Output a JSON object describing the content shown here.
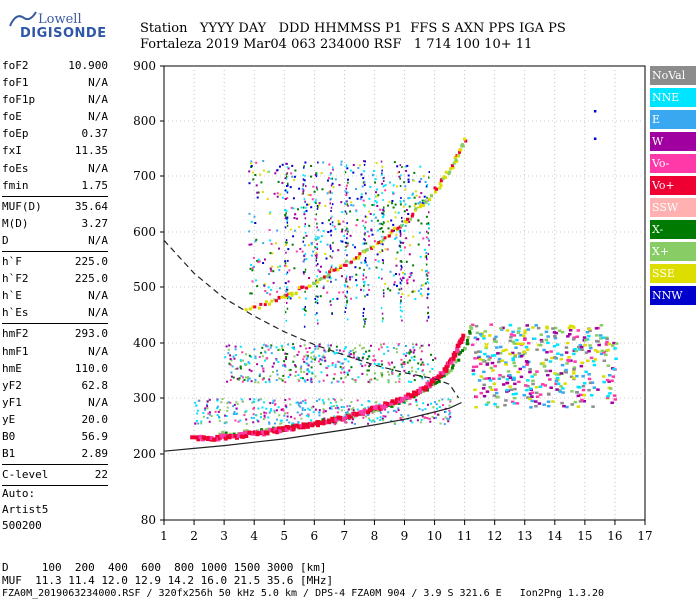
{
  "logo": {
    "line1": "Lowell",
    "line2": "DIGISONDE"
  },
  "header": {
    "row1": "Station   YYYY DAY   DDD HHMMSS P1  FFS S AXN PPS IGA PS",
    "row2": "Fortaleza 2019 Mar04 063 234000 RSF   1 714 100 10+ 11"
  },
  "params": [
    {
      "k": "foF2",
      "v": "10.900"
    },
    {
      "k": "foF1",
      "v": "N/A"
    },
    {
      "k": "foF1p",
      "v": "N/A"
    },
    {
      "k": "foE",
      "v": "N/A"
    },
    {
      "k": "foEp",
      "v": "0.37"
    },
    {
      "k": "fxI",
      "v": "11.35"
    },
    {
      "k": "foEs",
      "v": "N/A"
    },
    {
      "k": "fmin",
      "v": "1.75"
    },
    {
      "k": "sep"
    },
    {
      "k": "MUF(D)",
      "v": "35.64"
    },
    {
      "k": "M(D)",
      "v": "3.27"
    },
    {
      "k": "D",
      "v": "N/A"
    },
    {
      "k": "sep"
    },
    {
      "k": "h`F",
      "v": "225.0"
    },
    {
      "k": "h`F2",
      "v": "225.0"
    },
    {
      "k": "h`E",
      "v": "N/A"
    },
    {
      "k": "h`Es",
      "v": "N/A"
    },
    {
      "k": "sep"
    },
    {
      "k": "hmF2",
      "v": "293.0"
    },
    {
      "k": "hmF1",
      "v": "N/A"
    },
    {
      "k": "hmE",
      "v": "110.0"
    },
    {
      "k": "yF2",
      "v": "62.8"
    },
    {
      "k": "yF1",
      "v": "N/A"
    },
    {
      "k": "yE",
      "v": "20.0"
    },
    {
      "k": "B0",
      "v": "56.9"
    },
    {
      "k": "B1",
      "v": "2.89"
    },
    {
      "k": "sep"
    },
    {
      "k": "C-level",
      "v": "22"
    },
    {
      "k": "sep"
    }
  ],
  "auto": {
    "l1": "Auto:",
    "l2": "Artist5",
    "l3": "500200"
  },
  "legend": [
    {
      "label": "NoVal",
      "color": "#8c8c8c"
    },
    {
      "label": "NNE",
      "color": "#00e5ff"
    },
    {
      "label": "E",
      "color": "#3aa8f0"
    },
    {
      "label": "W",
      "color": "#a000a0"
    },
    {
      "label": "Vo-",
      "color": "#ff3aa8"
    },
    {
      "label": "Vo+",
      "color": "#ee0033"
    },
    {
      "label": "SSW",
      "color": "#ffb0b0"
    },
    {
      "label": "X-",
      "color": "#007a00"
    },
    {
      "label": "X+",
      "color": "#88cc66"
    },
    {
      "label": "SSE",
      "color": "#dddd00"
    },
    {
      "label": "NNW",
      "color": "#0000cc"
    }
  ],
  "footer": {
    "row1": "D     100  200  400  600  800 1000 1500 3000 [km]",
    "row2": "MUF  11.3 11.4 12.0 12.9 14.2 16.0 21.5 35.6 [MHz]",
    "row3": "FZA0M_2019063234000.RSF / 320fx256h 50 kHz 5.0 km / DPS-4 FZA0M 904 / 3.9 S 321.6 E   Ion2Png 1.3.20"
  },
  "chart_data": {
    "type": "scatter",
    "xlim": [
      1,
      17
    ],
    "ylim": [
      80,
      900
    ],
    "xticks": [
      "1",
      "2",
      "3",
      "4",
      "5",
      "6",
      "7",
      "8",
      "9",
      "10",
      "11",
      "12",
      "13",
      "14",
      "15",
      "16",
      "17"
    ],
    "yticks": [
      {
        "v": 900,
        "t": "900"
      },
      {
        "v": 800,
        "t": "800"
      },
      {
        "v": 700,
        "t": "700"
      },
      {
        "v": 600,
        "t": "600"
      },
      {
        "v": 500,
        "t": "500"
      },
      {
        "v": 400,
        "t": "400"
      },
      {
        "v": 300,
        "t": "300"
      },
      {
        "v": 200,
        "t": "200"
      },
      {
        "v": 80,
        "t": "80"
      }
    ],
    "o_trace": {
      "x": [
        1.9,
        2.5,
        3.0,
        3.5,
        4.0,
        4.5,
        5.0,
        5.5,
        6.0,
        6.5,
        7.0,
        7.5,
        8.0,
        8.5,
        9.0,
        9.5,
        10.0,
        10.3,
        10.5,
        10.7,
        10.9
      ],
      "y": [
        230,
        232,
        234,
        237,
        240,
        244,
        248,
        253,
        258,
        264,
        270,
        277,
        285,
        294,
        305,
        318,
        338,
        355,
        372,
        392,
        420
      ]
    },
    "x_trace": {
      "x": [
        2.8,
        3.5,
        4.0,
        4.5,
        5.0,
        5.5,
        6.0,
        6.5,
        7.0,
        7.5,
        8.0,
        8.5,
        9.0,
        9.5,
        10.0,
        10.5,
        11.0,
        11.2
      ],
      "y": [
        238,
        240,
        242,
        245,
        249,
        253,
        258,
        263,
        269,
        275,
        282,
        290,
        300,
        312,
        330,
        355,
        395,
        440
      ]
    },
    "f2_second_hop": {
      "x": [
        3.7,
        4.5,
        5.0,
        5.5,
        6.0,
        6.5,
        7.0,
        7.5,
        8.0,
        8.5,
        9.0,
        9.5,
        10.0,
        10.3,
        10.6,
        10.8,
        11.0
      ],
      "y": [
        462,
        475,
        485,
        498,
        512,
        528,
        545,
        562,
        580,
        600,
        622,
        648,
        678,
        700,
        725,
        745,
        770
      ]
    },
    "profile_curve": {
      "x": [
        1,
        1.5,
        2,
        3,
        4,
        5,
        6,
        7,
        8,
        9,
        10,
        10.5,
        10.8
      ],
      "y": [
        585,
        555,
        525,
        480,
        448,
        420,
        397,
        378,
        360,
        346,
        335,
        325,
        300
      ]
    },
    "muf_curve": {
      "x": [
        1,
        2,
        3,
        4,
        5,
        6,
        7,
        8,
        9,
        10,
        10.5,
        10.9
      ],
      "y": [
        205,
        210,
        215,
        221,
        227,
        235,
        243,
        252,
        262,
        275,
        282,
        292
      ]
    }
  }
}
